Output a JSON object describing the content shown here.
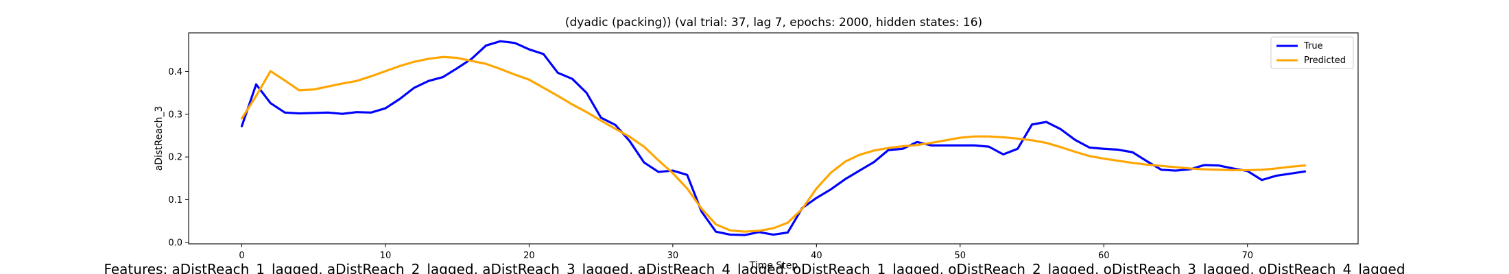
{
  "chart_data": {
    "type": "line",
    "title": "(dyadic (packing)) (val trial: 37, lag 7, epochs: 2000, hidden states: 16)",
    "xlabel": "Time Step",
    "ylabel": "aDistReach_3",
    "xlim": [
      -3.7,
      77.7
    ],
    "ylim": [
      -0.0036,
      0.4906
    ],
    "xticks": [
      0,
      10,
      20,
      30,
      40,
      50,
      60,
      70
    ],
    "yticks": [
      0.0,
      0.1,
      0.2,
      0.3,
      0.4
    ],
    "ytick_labels": [
      "0.0",
      "0.1",
      "0.2",
      "0.3",
      "0.4"
    ],
    "legend_position": "upper right",
    "grid": false,
    "series": [
      {
        "name": "True",
        "color": "#0000ff",
        "values": [
          0.272,
          0.37,
          0.326,
          0.304,
          0.302,
          0.303,
          0.304,
          0.301,
          0.305,
          0.304,
          0.314,
          0.336,
          0.362,
          0.378,
          0.387,
          0.408,
          0.43,
          0.461,
          0.471,
          0.467,
          0.452,
          0.441,
          0.397,
          0.383,
          0.35,
          0.292,
          0.275,
          0.237,
          0.187,
          0.165,
          0.168,
          0.158,
          0.072,
          0.025,
          0.018,
          0.017,
          0.024,
          0.018,
          0.023,
          0.08,
          0.104,
          0.124,
          0.148,
          0.168,
          0.188,
          0.216,
          0.219,
          0.235,
          0.227,
          0.227,
          0.227,
          0.227,
          0.224,
          0.206,
          0.219,
          0.276,
          0.282,
          0.265,
          0.24,
          0.222,
          0.219,
          0.217,
          0.211,
          0.19,
          0.17,
          0.168,
          0.171,
          0.181,
          0.18,
          0.173,
          0.167,
          0.146,
          0.156,
          0.161,
          0.166
        ]
      },
      {
        "name": "Predicted",
        "color": "#ffa500",
        "values": [
          0.29,
          0.343,
          0.401,
          0.379,
          0.356,
          0.358,
          0.365,
          0.372,
          0.378,
          0.389,
          0.401,
          0.413,
          0.423,
          0.43,
          0.434,
          0.432,
          0.425,
          0.418,
          0.406,
          0.393,
          0.381,
          0.362,
          0.343,
          0.323,
          0.305,
          0.285,
          0.266,
          0.247,
          0.224,
          0.192,
          0.162,
          0.126,
          0.079,
          0.042,
          0.028,
          0.025,
          0.027,
          0.033,
          0.046,
          0.078,
          0.126,
          0.163,
          0.189,
          0.205,
          0.215,
          0.221,
          0.225,
          0.228,
          0.233,
          0.239,
          0.245,
          0.248,
          0.248,
          0.246,
          0.243,
          0.239,
          0.233,
          0.223,
          0.212,
          0.202,
          0.196,
          0.191,
          0.186,
          0.182,
          0.179,
          0.176,
          0.173,
          0.171,
          0.17,
          0.169,
          0.169,
          0.17,
          0.173,
          0.177,
          0.18
        ]
      }
    ]
  },
  "footnote": "Features: aDistReach_1_lagged, aDistReach_2_lagged, aDistReach_3_lagged, aDistReach_4_lagged, oDistReach_1_lagged, oDistReach_2_lagged, oDistReach_3_lagged, oDistReach_4_lagged"
}
